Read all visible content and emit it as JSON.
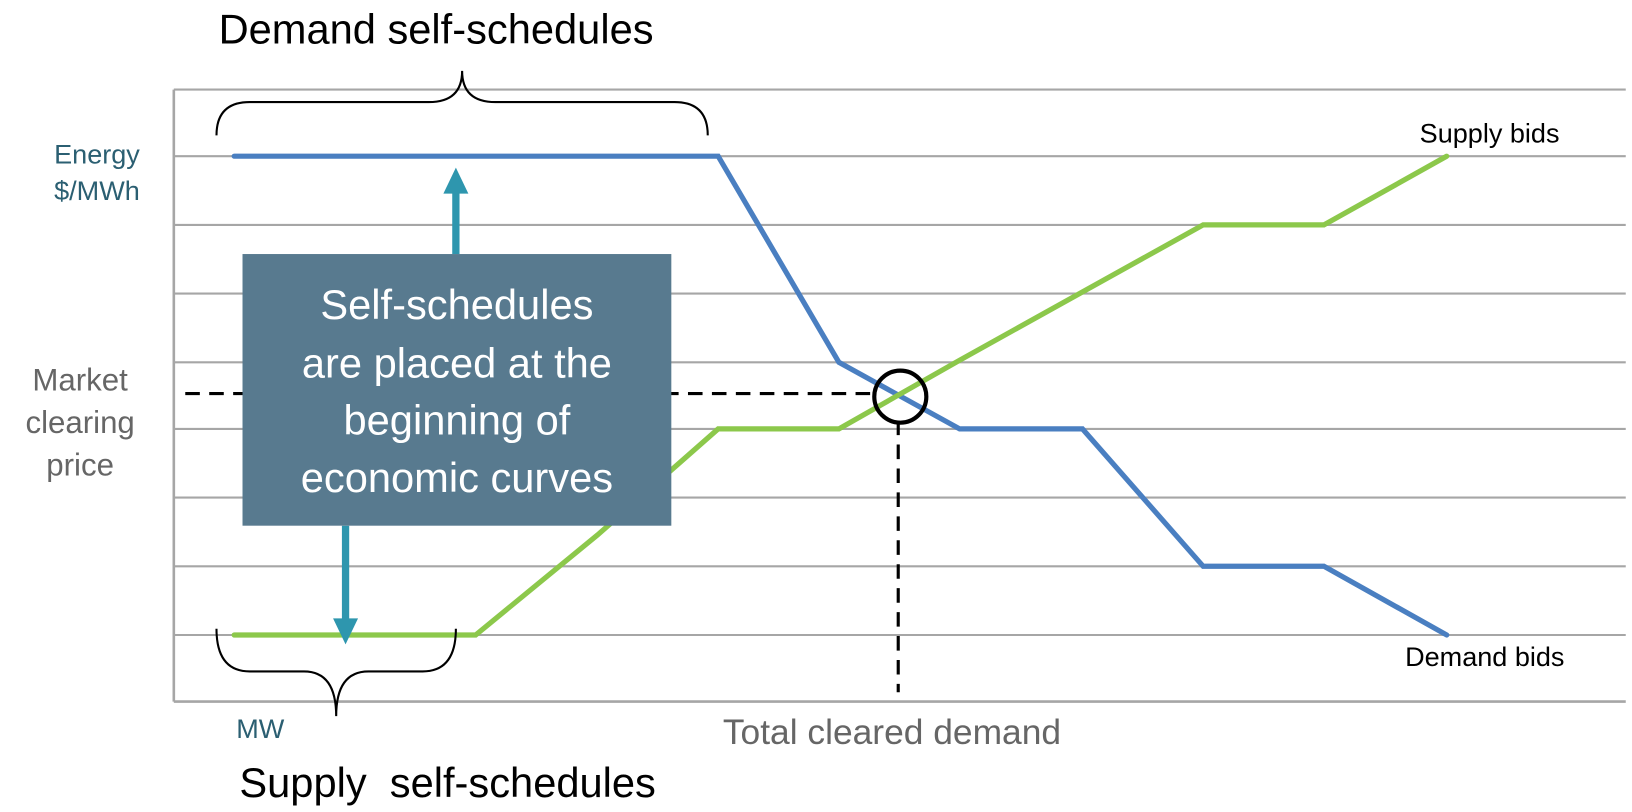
{
  "top_label": "Demand self-schedules",
  "y_axis_label": [
    "Energy",
    "$/MWh"
  ],
  "price_label": [
    "Market",
    "clearing",
    "price"
  ],
  "callout": [
    "Self-schedules",
    "are placed at the",
    "beginning  of",
    "economic curves"
  ],
  "supply_label": "Supply bids",
  "demand_label": "Demand bids",
  "x_axis_unit": "MW",
  "x_axis_label": "Total cleared demand",
  "bottom_label": "Supply  self-schedules"
}
